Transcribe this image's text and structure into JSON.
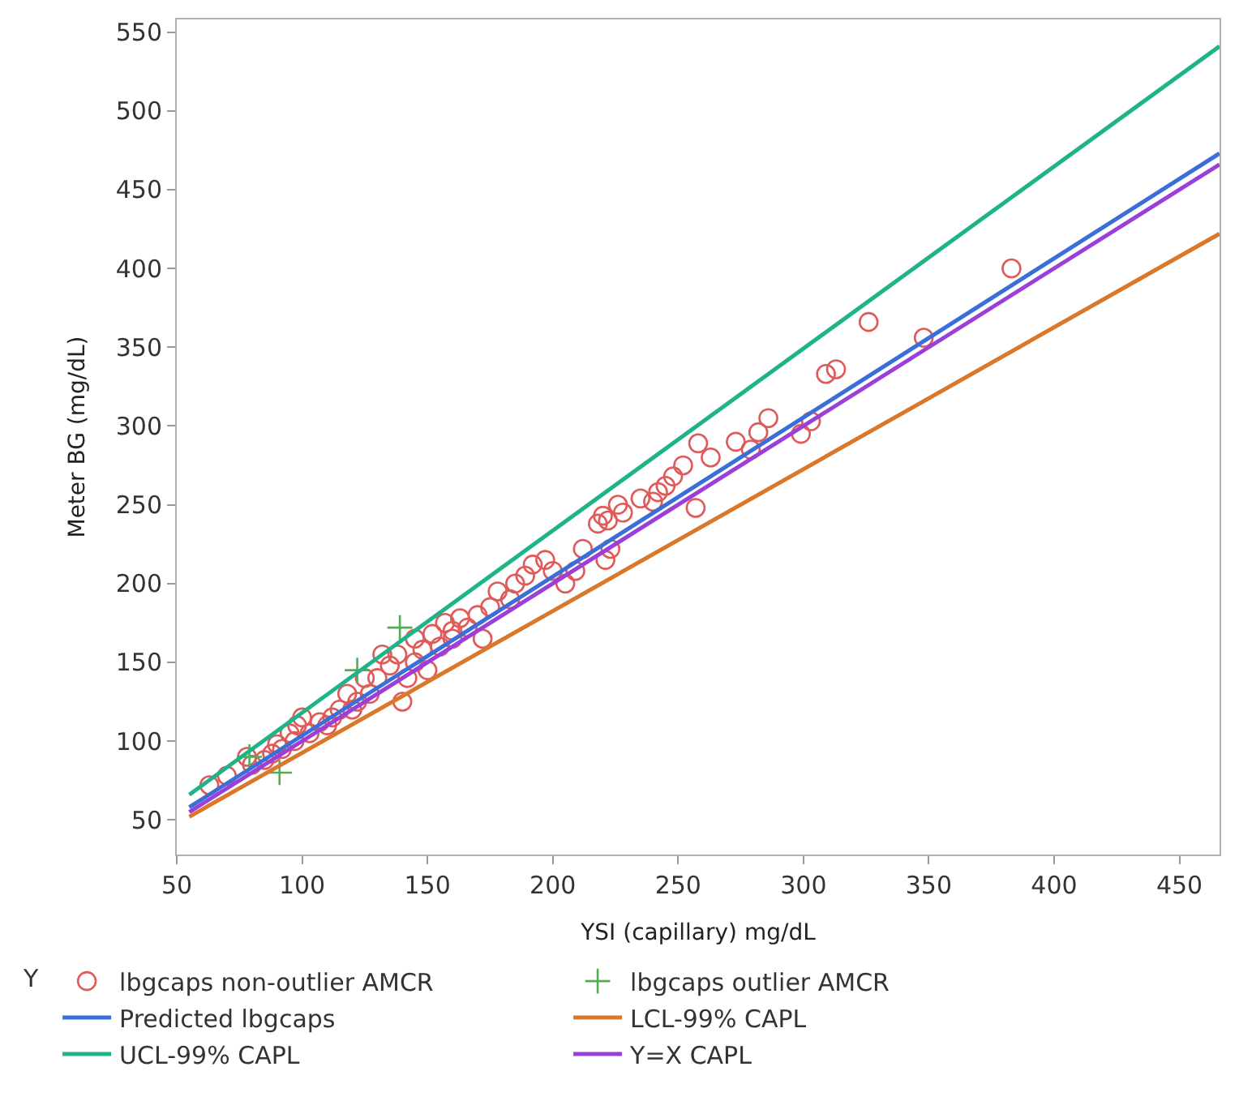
{
  "chart_data": {
    "type": "scatter",
    "xlabel": "YSI (capillary) mg/dL",
    "ylabel": "Meter BG (mg/dL)",
    "legend_title": "Y",
    "legend": "bottom",
    "xlim": [
      50,
      466
    ],
    "xticks": [
      50,
      100,
      150,
      200,
      250,
      300,
      350,
      400,
      450
    ],
    "ylim": [
      28,
      558
    ],
    "yticks": [
      50,
      100,
      150,
      200,
      250,
      300,
      350,
      400,
      450,
      500,
      550
    ],
    "series": [
      {
        "name": "lbgcaps non-outlier AMCR",
        "marker": "circle",
        "color": "#e05a5a",
        "x": [
          383,
          326,
          348,
          313,
          309,
          303,
          299,
          286,
          282,
          279,
          273,
          263,
          258,
          257,
          252,
          248,
          245,
          242,
          240,
          235,
          228,
          226,
          222,
          220,
          218,
          223,
          221,
          212,
          209,
          200,
          197,
          192,
          189,
          185,
          183,
          178,
          175,
          170,
          166,
          163,
          160,
          157,
          160,
          155,
          152,
          148,
          145,
          142,
          140,
          138,
          135,
          132,
          130,
          127,
          125,
          122,
          120,
          118,
          115,
          112,
          110,
          107,
          103,
          100,
          98,
          97,
          95,
          92,
          90,
          88,
          85,
          80,
          78,
          70,
          63,
          172,
          150,
          145,
          205
        ],
        "values": [
          400,
          366,
          356,
          336,
          333,
          303,
          295,
          305,
          296,
          285,
          290,
          280,
          289,
          248,
          275,
          268,
          262,
          258,
          252,
          254,
          245,
          250,
          240,
          243,
          238,
          222,
          215,
          222,
          208,
          208,
          215,
          212,
          205,
          200,
          190,
          195,
          185,
          180,
          172,
          178,
          170,
          175,
          165,
          160,
          168,
          158,
          150,
          140,
          125,
          155,
          148,
          155,
          140,
          130,
          140,
          125,
          120,
          130,
          120,
          115,
          110,
          112,
          105,
          115,
          110,
          100,
          105,
          95,
          98,
          92,
          88,
          85,
          90,
          78,
          72,
          165,
          145,
          165,
          200
        ]
      },
      {
        "name": "lbgcaps outlier AMCR",
        "marker": "cross",
        "color": "#4caf50",
        "x": [
          91,
          122,
          139,
          79
        ],
        "values": [
          80,
          145,
          172,
          90
        ]
      },
      {
        "name": "Predicted lbgcaps",
        "type": "line",
        "color": "#3a6fd8",
        "x": [
          55,
          466
        ],
        "values": [
          58,
          473
        ]
      },
      {
        "name": "LCL-99% CAPL",
        "type": "line",
        "color": "#d9782a",
        "x": [
          55,
          466
        ],
        "values": [
          52,
          422
        ]
      },
      {
        "name": "UCL-99% CAPL",
        "type": "line",
        "color": "#1fb38a",
        "x": [
          55,
          466
        ],
        "values": [
          66,
          541
        ]
      },
      {
        "name": "Y=X CAPL",
        "type": "line",
        "color": "#9b3fd8",
        "x": [
          55,
          466
        ],
        "values": [
          55,
          466
        ]
      }
    ]
  }
}
